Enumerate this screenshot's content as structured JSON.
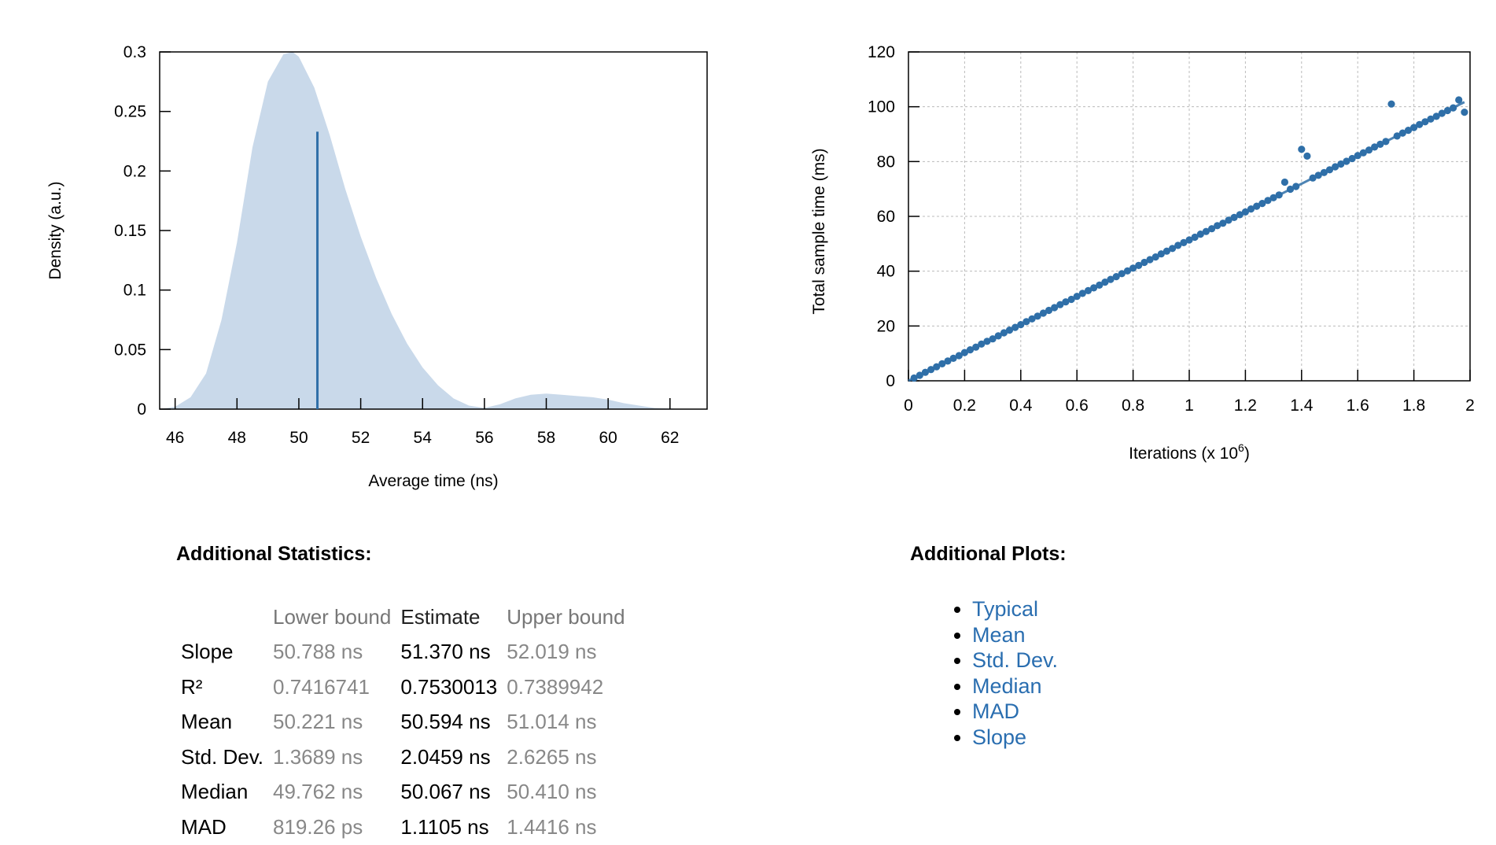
{
  "density_chart": {
    "chart_data": {
      "type": "area",
      "xlabel": "Average time (ns)",
      "ylabel": "Density (a.u.)",
      "xlim": [
        45.5,
        63.2
      ],
      "ylim": [
        0,
        0.3
      ],
      "x_ticks": [
        46,
        48,
        50,
        52,
        54,
        56,
        58,
        60,
        62
      ],
      "y_ticks": [
        0,
        0.05,
        0.1,
        0.15,
        0.2,
        0.25,
        0.3
      ],
      "y_tick_labels": [
        "0",
        "0.05",
        "0.1",
        "0.15",
        "0.2",
        "0.25",
        "0.3"
      ],
      "x": [
        45.5,
        46.0,
        46.5,
        47.0,
        47.5,
        48.0,
        48.5,
        49.0,
        49.5,
        49.8,
        50.0,
        50.5,
        51.0,
        51.5,
        52.0,
        52.5,
        53.0,
        53.5,
        54.0,
        54.5,
        55.0,
        55.5,
        56.0,
        56.5,
        57.0,
        57.5,
        58.0,
        58.5,
        59.0,
        59.5,
        60.0,
        60.5,
        61.0,
        61.5,
        62.0,
        62.5,
        63.2
      ],
      "y": [
        0.0,
        0.002,
        0.01,
        0.03,
        0.075,
        0.14,
        0.22,
        0.275,
        0.298,
        0.3,
        0.296,
        0.27,
        0.23,
        0.185,
        0.145,
        0.11,
        0.08,
        0.055,
        0.035,
        0.02,
        0.009,
        0.003,
        0.001,
        0.004,
        0.009,
        0.012,
        0.013,
        0.012,
        0.011,
        0.01,
        0.008,
        0.005,
        0.003,
        0.001,
        0.0005,
        0.0,
        0.0
      ],
      "mean_marker": {
        "x": 50.6,
        "y": 0.233
      },
      "fill_color": "#c9d9ea",
      "line_color": "#2f6fa8"
    }
  },
  "regression_chart": {
    "chart_data": {
      "type": "scatter",
      "xlabel": "Iterations (x 10",
      "xlabel_exponent": "6",
      "xlabel_suffix": ")",
      "ylabel": "Total sample time (ms)",
      "xlim": [
        0,
        2
      ],
      "ylim": [
        0,
        120
      ],
      "x_ticks": [
        0,
        0.2,
        0.4,
        0.6,
        0.8,
        1,
        1.2,
        1.4,
        1.6,
        1.8,
        2
      ],
      "y_ticks": [
        0,
        20,
        40,
        60,
        80,
        100,
        120
      ],
      "x": [
        0.02,
        0.04,
        0.06,
        0.08,
        0.1,
        0.12,
        0.14,
        0.16,
        0.18,
        0.2,
        0.22,
        0.24,
        0.26,
        0.28,
        0.3,
        0.32,
        0.34,
        0.36,
        0.38,
        0.4,
        0.42,
        0.44,
        0.46,
        0.48,
        0.5,
        0.52,
        0.54,
        0.56,
        0.58,
        0.6,
        0.62,
        0.64,
        0.66,
        0.68,
        0.7,
        0.72,
        0.74,
        0.76,
        0.78,
        0.8,
        0.82,
        0.84,
        0.86,
        0.88,
        0.9,
        0.92,
        0.94,
        0.96,
        0.98,
        1.0,
        1.02,
        1.04,
        1.06,
        1.08,
        1.1,
        1.12,
        1.14,
        1.16,
        1.18,
        1.2,
        1.22,
        1.24,
        1.26,
        1.28,
        1.3,
        1.32,
        1.34,
        1.36,
        1.38,
        1.4,
        1.42,
        1.44,
        1.46,
        1.48,
        1.5,
        1.52,
        1.54,
        1.56,
        1.58,
        1.6,
        1.62,
        1.64,
        1.66,
        1.68,
        1.7,
        1.72,
        1.74,
        1.76,
        1.78,
        1.8,
        1.82,
        1.84,
        1.86,
        1.88,
        1.9,
        1.92,
        1.94,
        1.96,
        1.98
      ],
      "y": [
        1.0,
        2.0,
        3.1,
        4.1,
        5.1,
        6.2,
        7.2,
        8.2,
        9.2,
        10.3,
        11.3,
        12.3,
        13.4,
        14.4,
        15.3,
        16.4,
        17.5,
        18.5,
        19.5,
        20.5,
        21.6,
        22.6,
        23.6,
        24.7,
        25.7,
        26.7,
        27.8,
        28.8,
        29.7,
        30.8,
        31.9,
        32.9,
        33.9,
        34.9,
        36.0,
        37.0,
        38.0,
        39.1,
        40.1,
        41.1,
        42.1,
        43.2,
        44.2,
        45.2,
        46.3,
        47.3,
        48.3,
        49.4,
        50.4,
        51.4,
        52.4,
        53.5,
        54.5,
        55.5,
        56.6,
        57.5,
        58.6,
        59.6,
        60.6,
        61.6,
        62.7,
        63.7,
        64.7,
        65.8,
        66.8,
        67.8,
        72.5,
        69.9,
        70.9,
        84.5,
        82.0,
        74.0,
        75.0,
        76.0,
        77.0,
        78.1,
        79.1,
        80.1,
        81.1,
        82.2,
        83.2,
        84.2,
        85.3,
        86.3,
        87.3,
        101.0,
        89.3,
        90.4,
        91.4,
        92.4,
        93.5,
        94.5,
        95.5,
        96.5,
        97.6,
        98.6,
        99.6,
        102.5,
        98.0
      ],
      "fit_line": {
        "x": [
          0,
          1.98
        ],
        "y": [
          0,
          101.7
        ]
      },
      "point_color": "#2f6fa8"
    }
  },
  "statistics": {
    "title": "Additional Statistics:",
    "headers": [
      "",
      "Lower bound",
      "Estimate",
      "Upper bound"
    ],
    "rows": [
      {
        "label": "Slope",
        "lower": "50.788 ns",
        "estimate": "51.370 ns",
        "upper": "52.019 ns"
      },
      {
        "label": "R²",
        "lower": "0.7416741",
        "estimate": "0.7530013",
        "upper": "0.7389942"
      },
      {
        "label": "Mean",
        "lower": "50.221 ns",
        "estimate": "50.594 ns",
        "upper": "51.014 ns"
      },
      {
        "label": "Std. Dev.",
        "lower": "1.3689 ns",
        "estimate": "2.0459 ns",
        "upper": "2.6265 ns"
      },
      {
        "label": "Median",
        "lower": "49.762 ns",
        "estimate": "50.067 ns",
        "upper": "50.410 ns"
      },
      {
        "label": "MAD",
        "lower": "819.26 ps",
        "estimate": "1.1105 ns",
        "upper": "1.4416 ns"
      }
    ]
  },
  "additional_plots": {
    "title": "Additional Plots:",
    "links": [
      "Typical",
      "Mean",
      "Std. Dev.",
      "Median",
      "MAD",
      "Slope"
    ],
    "link_color": "#2a6eb0"
  }
}
